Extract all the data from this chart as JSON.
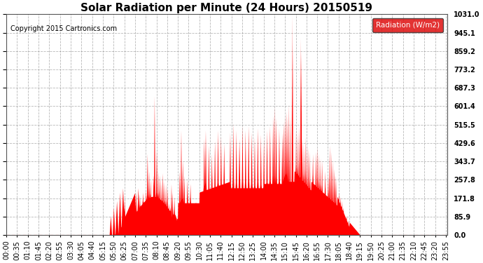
{
  "title": "Solar Radiation per Minute (24 Hours) 20150519",
  "copyright": "Copyright 2015 Cartronics.com",
  "legend_label": "Radiation (W/m2)",
  "yticks": [
    0.0,
    85.9,
    171.8,
    257.8,
    343.7,
    429.6,
    515.5,
    601.4,
    687.3,
    773.2,
    859.2,
    945.1,
    1031.0
  ],
  "ymax": 1031.0,
  "fill_color": "#ff0000",
  "line_color": "#ff0000",
  "grid_color": "#888888",
  "bg_color": "#ffffff",
  "legend_bg": "#dd0000",
  "legend_text_color": "#ffffff",
  "title_fontsize": 11,
  "copyright_fontsize": 7,
  "tick_fontsize": 7,
  "sunrise_min": 335,
  "sunset_min": 1155
}
